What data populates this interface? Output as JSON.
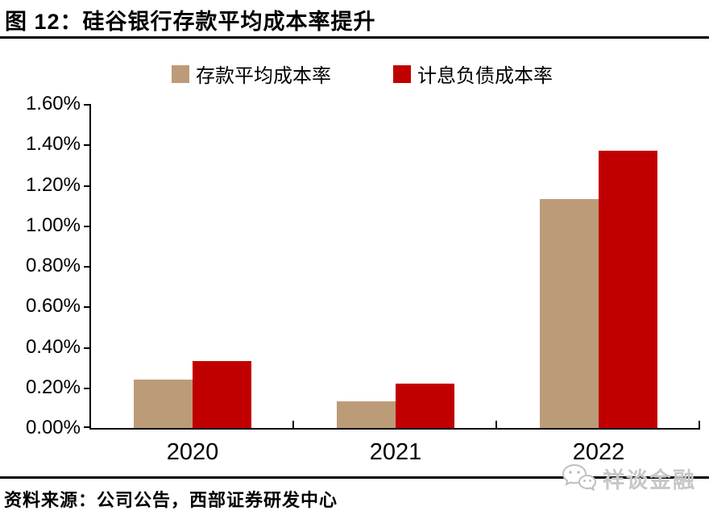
{
  "header": {
    "figure_label": "图 12：",
    "title": "硅谷银行存款平均成本率提升"
  },
  "chart_data": {
    "type": "bar",
    "title": "硅谷银行存款平均成本率提升",
    "categories": [
      "2020",
      "2021",
      "2022"
    ],
    "series": [
      {
        "key": "deposit-avg-cost",
        "name": "存款平均成本率",
        "color": "#BC9B78",
        "values": [
          0.24,
          0.13,
          1.13
        ]
      },
      {
        "key": "interest-bearing-liability-cost",
        "name": "计息负债成本率",
        "color": "#C00000",
        "values": [
          0.33,
          0.22,
          1.37
        ]
      }
    ],
    "value_unit": "%",
    "ylim": [
      0,
      1.6
    ],
    "y_ticks": [
      {
        "label": "0.00%",
        "value": 0.0
      },
      {
        "label": "0.20%",
        "value": 0.2
      },
      {
        "label": "0.40%",
        "value": 0.4
      },
      {
        "label": "0.60%",
        "value": 0.6
      },
      {
        "label": "0.80%",
        "value": 0.8
      },
      {
        "label": "1.00%",
        "value": 1.0
      },
      {
        "label": "1.20%",
        "value": 1.2
      },
      {
        "label": "1.40%",
        "value": 1.4
      },
      {
        "label": "1.60%",
        "value": 1.6
      }
    ],
    "grid": false,
    "legend_position": "top",
    "axis_color": "#000000"
  },
  "footer": {
    "source": "资料来源：公司公告，西部证券研发中心",
    "watermark": "祥谈金融",
    "watermark_color": "#c7c7c7"
  }
}
